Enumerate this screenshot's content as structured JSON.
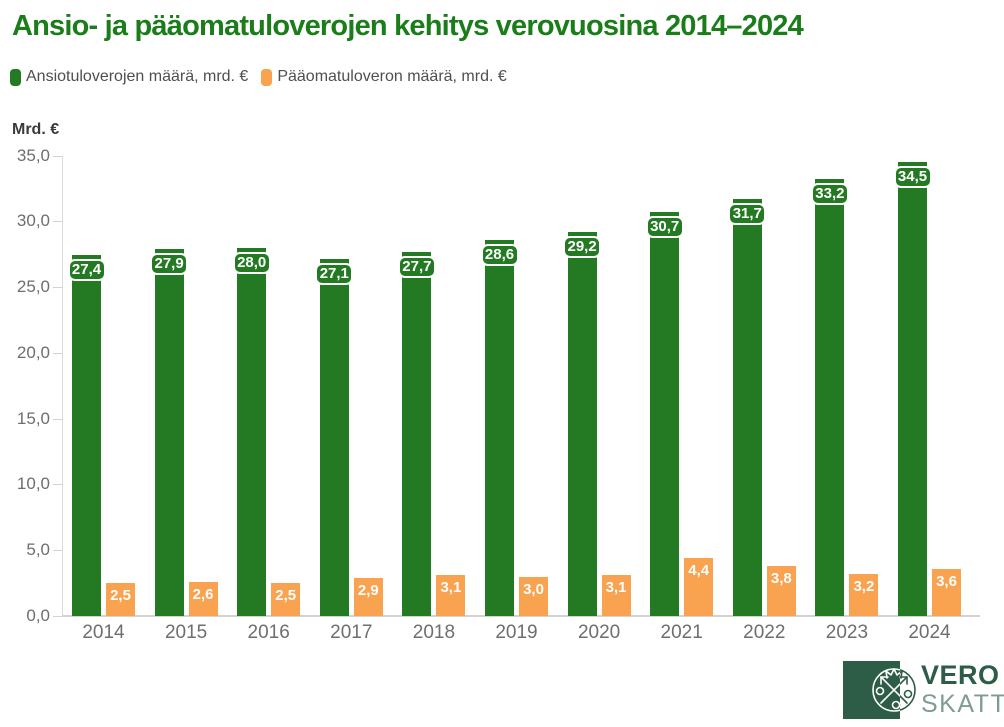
{
  "title": "Ansio- ja pääomatuloverojen kehitys verovuosina 2014–2024",
  "legend": {
    "items": [
      {
        "label": "Ansiotuloverojen määrä, mrd. €",
        "color": "#237a23"
      },
      {
        "label": "Pääomatuloveron määrä, mrd. €",
        "color": "#f9a24f"
      }
    ]
  },
  "chart_data": {
    "type": "bar",
    "title": "Ansio- ja pääomatuloverojen kehitys verovuosina 2014–2024",
    "ylabel": "Mrd. €",
    "xlabel": "",
    "ylim": [
      0,
      35
    ],
    "ytick_values": [
      0,
      5,
      10,
      15,
      20,
      25,
      30,
      35
    ],
    "ytick_labels": [
      "0,0",
      "5,0",
      "10,0",
      "15,0",
      "20,0",
      "25,0",
      "30,0",
      "35,0"
    ],
    "grid": false,
    "legend_position": "top-left",
    "categories": [
      "2014",
      "2015",
      "2016",
      "2017",
      "2018",
      "2019",
      "2020",
      "2021",
      "2022",
      "2023",
      "2024"
    ],
    "series": [
      {
        "name": "Ansiotuloverojen määrä, mrd. €",
        "color": "#237a23",
        "values": [
          27.4,
          27.9,
          28.0,
          27.1,
          27.7,
          28.6,
          29.2,
          30.7,
          31.7,
          33.2,
          34.5
        ],
        "labels": [
          "27,4",
          "27,9",
          "28,0",
          "27,1",
          "27,7",
          "28,6",
          "29,2",
          "30,7",
          "31,7",
          "33,2",
          "34,5"
        ]
      },
      {
        "name": "Pääomatuloveron määrä, mrd. €",
        "color": "#f9a24f",
        "values": [
          2.5,
          2.6,
          2.5,
          2.9,
          3.1,
          3.0,
          3.1,
          4.4,
          3.8,
          3.2,
          3.6
        ],
        "labels": [
          "2,5",
          "2,6",
          "2,5",
          "2,9",
          "3,1",
          "3,0",
          "3,1",
          "4,4",
          "3,8",
          "3,2",
          "3,6"
        ]
      }
    ]
  },
  "logo": {
    "line1": "VERO",
    "line2": "SKATT",
    "emblem": "vero-skatt-emblem",
    "square_color": "#2d5c47"
  }
}
